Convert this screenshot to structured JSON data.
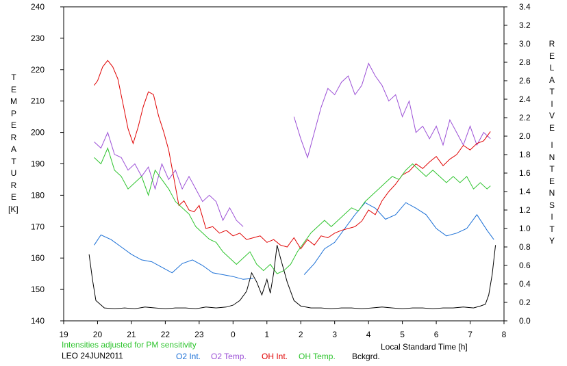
{
  "chart_data": {
    "type": "line",
    "left_axis_label_letters": [
      "T",
      "E",
      "M",
      "P",
      "E",
      "R",
      "A",
      "T",
      "U",
      "R",
      "E"
    ],
    "left_axis_unit": "[K]",
    "right_axis_label_letters_1": [
      "R",
      "E",
      "L",
      "A",
      "T",
      "I",
      "V",
      "E"
    ],
    "right_axis_label_letters_2": [
      "I",
      "N",
      "T",
      "E",
      "N",
      "S",
      "I",
      "T",
      "Y"
    ],
    "xlabel": "Local Standard Time [h]",
    "note": "Intensities adjusted for PM sensitivity",
    "site_date": "LEO 24JUN2011",
    "x_ticks": [
      "19",
      "20",
      "21",
      "22",
      "23",
      "0",
      "1",
      "2",
      "3",
      "4",
      "5",
      "6",
      "7",
      "8"
    ],
    "y_left_ticks": [
      "140",
      "150",
      "160",
      "170",
      "180",
      "190",
      "200",
      "210",
      "220",
      "230",
      "240"
    ],
    "y_right_ticks": [
      "0.0",
      "0.2",
      "0.4",
      "0.6",
      "0.8",
      "1.0",
      "1.2",
      "1.4",
      "1.6",
      "1.8",
      "2.0",
      "2.2",
      "2.4",
      "2.6",
      "2.8",
      "3.0",
      "3.2",
      "3.4"
    ],
    "x_range": [
      19,
      32
    ],
    "y_left_range": [
      140,
      240
    ],
    "y_right_range": [
      0.0,
      3.4
    ],
    "legend": [
      {
        "name": "O2 Int.",
        "color": "#1a6fd6"
      },
      {
        "name": "O2 Temp.",
        "color": "#9b4fd6"
      },
      {
        "name": "OH Int.",
        "color": "#e00000"
      },
      {
        "name": "OH Temp.",
        "color": "#2ec42e"
      },
      {
        "name": "Bckgrd.",
        "color": "#000000"
      }
    ],
    "series": [
      {
        "name": "O2 Int.",
        "axis": "right",
        "color": "#1a6fd6",
        "x": [
          19.9,
          20.1,
          20.4,
          20.7,
          21.0,
          21.3,
          21.6,
          21.9,
          22.2,
          22.5,
          22.8,
          23.1,
          23.4,
          23.7,
          24.0,
          24.3,
          24.6,
          24.9,
          25.2,
          25.5,
          25.8,
          26.1,
          26.4,
          26.7,
          27.0,
          27.3,
          27.6,
          27.9,
          28.2,
          28.5,
          28.8,
          29.1,
          29.4,
          29.7,
          30.0,
          30.3,
          30.6,
          30.9,
          31.2,
          31.5,
          31.7
        ],
        "y": [
          0.82,
          0.93,
          0.88,
          0.8,
          0.72,
          0.66,
          0.64,
          0.58,
          0.52,
          0.62,
          0.66,
          0.6,
          0.52,
          0.5,
          0.48,
          0.45,
          0.46,
          null,
          null,
          null,
          null,
          0.5,
          0.62,
          0.78,
          0.85,
          1.0,
          1.15,
          1.28,
          1.22,
          1.1,
          1.15,
          1.28,
          1.22,
          1.15,
          1.0,
          0.92,
          0.95,
          1.0,
          1.15,
          0.98,
          0.88
        ]
      },
      {
        "name": "O2 Temp.",
        "axis": "left",
        "color": "#9b4fd6",
        "x": [
          19.9,
          20.1,
          20.3,
          20.5,
          20.7,
          20.9,
          21.1,
          21.3,
          21.5,
          21.7,
          21.9,
          22.1,
          22.3,
          22.5,
          22.7,
          22.9,
          23.1,
          23.3,
          23.5,
          23.7,
          23.9,
          24.1,
          24.3,
          null,
          25.8,
          26.0,
          26.2,
          26.4,
          26.6,
          26.8,
          27.0,
          27.2,
          27.4,
          27.6,
          27.8,
          28.0,
          28.2,
          28.4,
          28.6,
          28.8,
          29.0,
          29.2,
          29.4,
          29.6,
          29.8,
          30.0,
          30.2,
          30.4,
          30.6,
          30.8,
          31.0,
          31.2,
          31.4,
          31.6
        ],
        "y": [
          197,
          195,
          200,
          193,
          192,
          188,
          190,
          186,
          189,
          182,
          190,
          185,
          188,
          182,
          186,
          182,
          178,
          180,
          178,
          172,
          176,
          172,
          170,
          null,
          205,
          198,
          192,
          200,
          208,
          214,
          212,
          216,
          218,
          212,
          215,
          222,
          218,
          215,
          210,
          212,
          205,
          210,
          200,
          202,
          198,
          202,
          196,
          204,
          200,
          196,
          202,
          196,
          200,
          198
        ]
      },
      {
        "name": "OH Int.",
        "axis": "right",
        "color": "#e00000",
        "x": [
          19.9,
          20.0,
          20.15,
          20.3,
          20.45,
          20.6,
          20.75,
          20.9,
          21.05,
          21.2,
          21.35,
          21.5,
          21.65,
          21.8,
          21.95,
          22.1,
          22.25,
          22.4,
          22.55,
          22.7,
          22.85,
          23.0,
          23.2,
          23.4,
          23.6,
          23.8,
          24.0,
          24.2,
          24.4,
          24.6,
          24.8,
          25.0,
          25.2,
          25.4,
          25.6,
          25.8,
          26.0,
          26.2,
          26.4,
          26.6,
          26.8,
          27.0,
          27.2,
          27.4,
          27.6,
          27.8,
          28.0,
          28.2,
          28.4,
          28.6,
          28.8,
          29.0,
          29.2,
          29.4,
          29.6,
          29.8,
          30.0,
          30.2,
          30.4,
          30.6,
          30.8,
          31.0,
          31.2,
          31.4,
          31.6
        ],
        "y": [
          2.55,
          2.6,
          2.75,
          2.82,
          2.75,
          2.62,
          2.35,
          2.08,
          1.92,
          2.1,
          2.32,
          2.48,
          2.45,
          2.22,
          2.05,
          1.85,
          1.55,
          1.25,
          1.3,
          1.2,
          1.18,
          1.25,
          1.0,
          1.02,
          0.95,
          0.98,
          0.92,
          0.95,
          0.88,
          0.9,
          0.92,
          0.85,
          0.88,
          0.82,
          0.8,
          0.9,
          0.78,
          0.88,
          0.82,
          0.92,
          0.9,
          0.95,
          0.98,
          1.0,
          1.02,
          1.08,
          1.2,
          1.15,
          1.3,
          1.4,
          1.48,
          1.58,
          1.62,
          1.7,
          1.65,
          1.72,
          1.78,
          1.68,
          1.75,
          1.8,
          1.9,
          1.85,
          1.92,
          1.95,
          2.05
        ]
      },
      {
        "name": "OH Temp.",
        "axis": "left",
        "color": "#2ec42e",
        "x": [
          19.9,
          20.1,
          20.3,
          20.5,
          20.7,
          20.9,
          21.1,
          21.3,
          21.5,
          21.7,
          21.9,
          22.1,
          22.3,
          22.5,
          22.7,
          22.9,
          23.1,
          23.3,
          23.5,
          23.7,
          23.9,
          24.1,
          24.3,
          24.5,
          24.7,
          24.9,
          25.1,
          25.3,
          25.5,
          25.7,
          25.9,
          26.1,
          26.3,
          26.5,
          26.7,
          26.9,
          27.1,
          27.3,
          27.5,
          27.7,
          27.9,
          28.1,
          28.3,
          28.5,
          28.7,
          28.9,
          29.1,
          29.3,
          29.5,
          29.7,
          29.9,
          30.1,
          30.3,
          30.5,
          30.7,
          30.9,
          31.1,
          31.3,
          31.5,
          31.6
        ],
        "y": [
          192,
          190,
          195,
          188,
          186,
          182,
          184,
          186,
          180,
          188,
          185,
          182,
          178,
          176,
          174,
          170,
          168,
          166,
          165,
          162,
          160,
          158,
          160,
          162,
          158,
          156,
          158,
          155,
          156,
          158,
          162,
          165,
          168,
          170,
          172,
          170,
          172,
          174,
          176,
          175,
          178,
          180,
          182,
          184,
          186,
          185,
          188,
          190,
          188,
          186,
          188,
          186,
          184,
          186,
          184,
          186,
          182,
          184,
          182,
          183
        ]
      },
      {
        "name": "Bckgrd.",
        "axis": "right",
        "color": "#000000",
        "x": [
          19.75,
          19.85,
          19.95,
          20.2,
          20.5,
          20.8,
          21.1,
          21.4,
          21.7,
          22.0,
          22.3,
          22.6,
          22.9,
          23.2,
          23.5,
          23.8,
          24.0,
          24.2,
          24.4,
          24.55,
          24.7,
          24.85,
          25.0,
          25.1,
          25.2,
          25.3,
          25.4,
          25.5,
          25.6,
          25.8,
          26.0,
          26.3,
          26.6,
          26.9,
          27.2,
          27.5,
          27.8,
          28.1,
          28.4,
          28.7,
          29.0,
          29.3,
          29.6,
          29.9,
          30.2,
          30.5,
          30.8,
          31.1,
          31.3,
          31.45,
          31.55,
          31.65,
          31.75
        ],
        "y": [
          0.72,
          0.45,
          0.22,
          0.14,
          0.13,
          0.14,
          0.13,
          0.15,
          0.14,
          0.13,
          0.14,
          0.14,
          0.13,
          0.15,
          0.14,
          0.15,
          0.17,
          0.22,
          0.32,
          0.52,
          0.42,
          0.28,
          0.45,
          0.3,
          0.52,
          0.82,
          0.68,
          0.55,
          0.42,
          0.22,
          0.16,
          0.14,
          0.14,
          0.13,
          0.14,
          0.14,
          0.13,
          0.14,
          0.15,
          0.14,
          0.13,
          0.14,
          0.14,
          0.13,
          0.14,
          0.14,
          0.15,
          0.14,
          0.16,
          0.18,
          0.28,
          0.5,
          0.82
        ]
      }
    ]
  }
}
